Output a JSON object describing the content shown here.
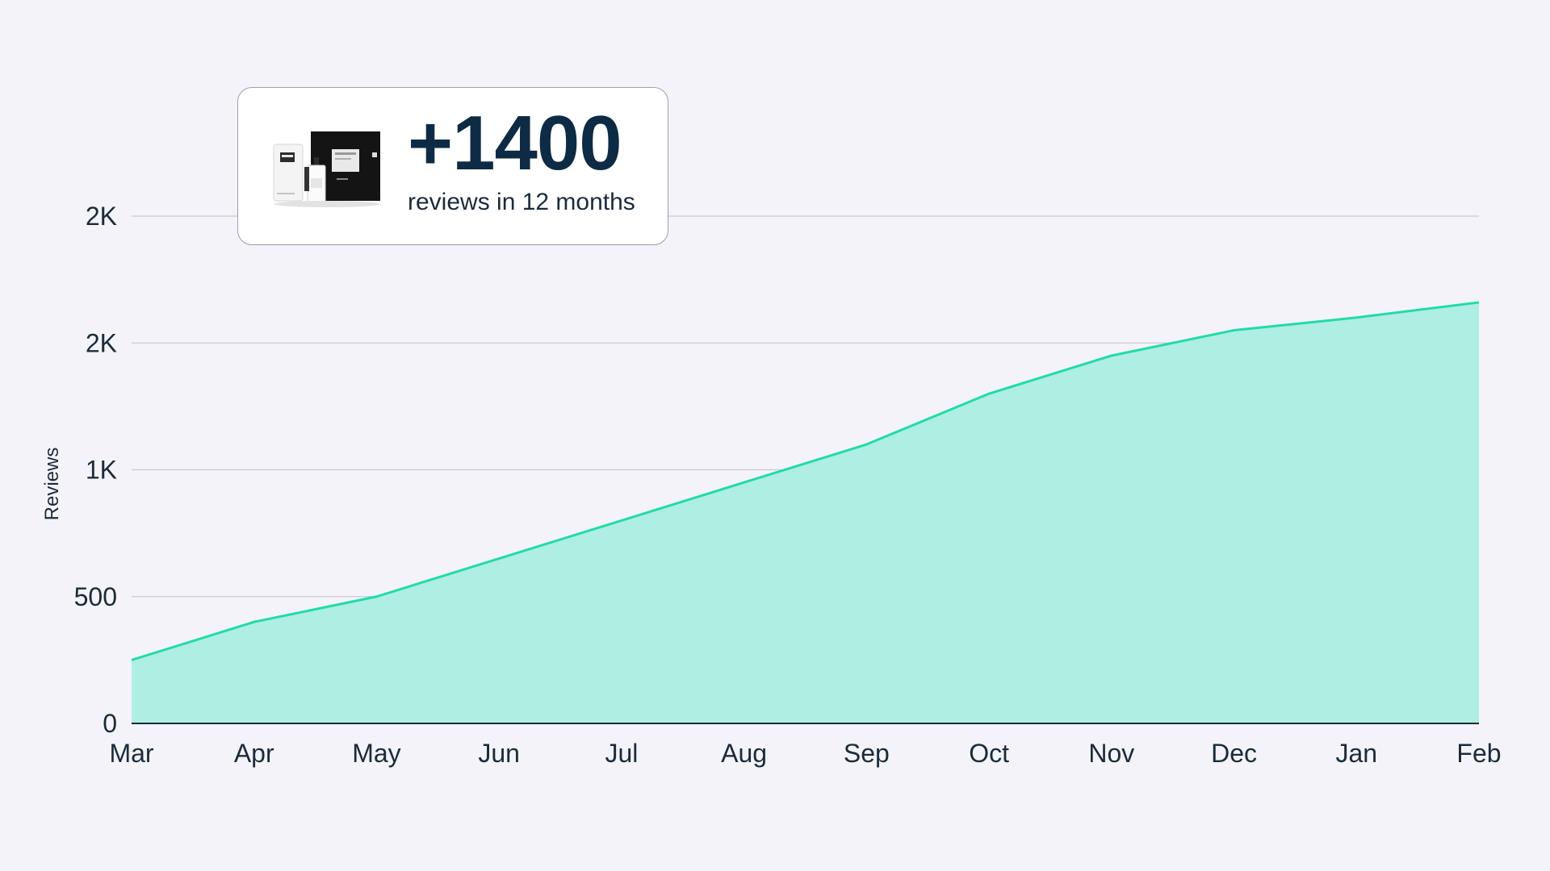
{
  "callout": {
    "value": "+1400",
    "caption": "reviews in 12 months",
    "image": "product-box-and-bottle"
  },
  "colors": {
    "background": "#f3f3f9",
    "line": "#22dba8",
    "area": "#aeeee3",
    "grid": "#c9cbd1",
    "text": "#1c2b3b",
    "callout_value": "#0e2b45"
  },
  "chart_data": {
    "type": "area",
    "ylabel": "Reviews",
    "xlabel": "",
    "categories": [
      "Mar",
      "Apr",
      "May",
      "Jun",
      "Jul",
      "Aug",
      "Sep",
      "Oct",
      "Nov",
      "Dec",
      "Jan",
      "Feb"
    ],
    "series": [
      {
        "values": [
          250,
          400,
          500,
          650,
          800,
          950,
          1100,
          1300,
          1450,
          1550,
          1600,
          1660
        ]
      }
    ],
    "ylim": [
      0,
      2000
    ],
    "yticks": [
      {
        "value": 0,
        "label": "0"
      },
      {
        "value": 500,
        "label": "500"
      },
      {
        "value": 1000,
        "label": "1K"
      },
      {
        "value": 1500,
        "label": "2K"
      },
      {
        "value": 2000,
        "label": "2K"
      }
    ],
    "grid": true,
    "legend": "none"
  }
}
